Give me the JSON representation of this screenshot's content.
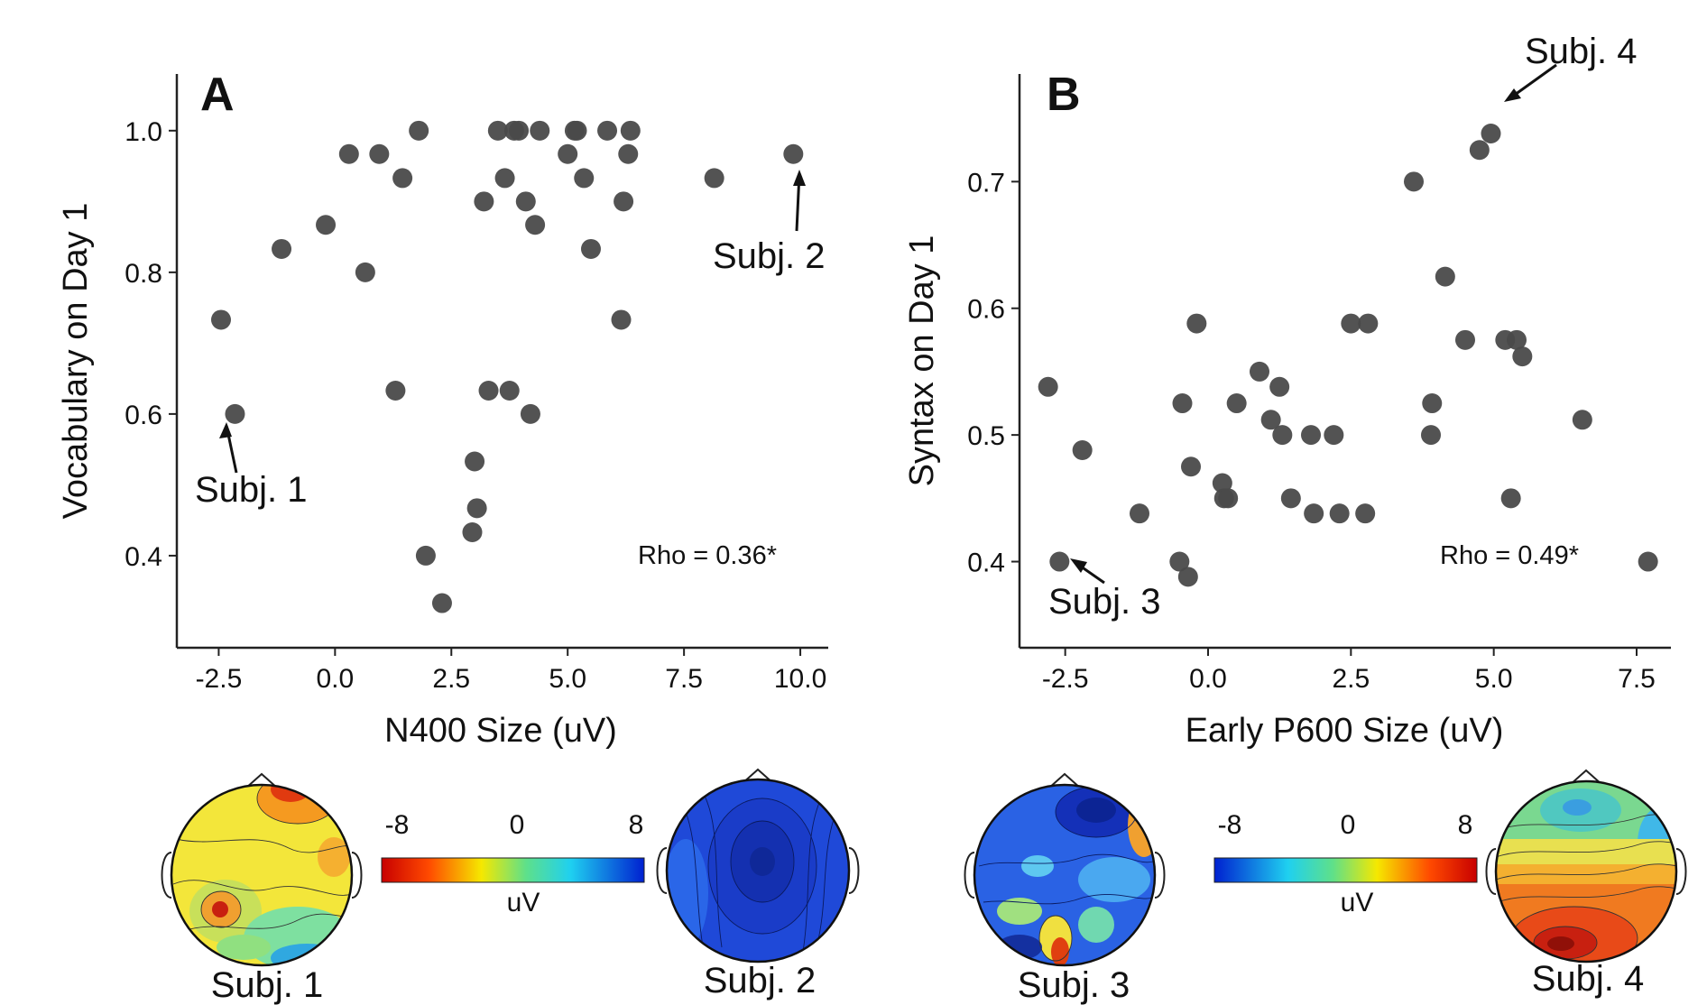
{
  "chart_data": [
    {
      "type": "scatter",
      "panel": "A",
      "xlabel": "N400 Size (uV)",
      "ylabel": "Vocabulary on Day 1",
      "xlim": [
        -3.4,
        10.6
      ],
      "ylim": [
        0.27,
        1.08
      ],
      "xticks": [
        "-2.5",
        "0.0",
        "2.5",
        "5.0",
        "7.5",
        "10.0"
      ],
      "xtick_values": [
        -2.5,
        0,
        2.5,
        5,
        7.5,
        10
      ],
      "yticks": [
        "0.4",
        "0.6",
        "0.8",
        "1.0"
      ],
      "ytick_values": [
        0.4,
        0.6,
        0.8,
        1.0
      ],
      "annotation": "Rho = 0.36*",
      "color": "#4a4a4a",
      "points": [
        [
          -2.45,
          0.733
        ],
        [
          -2.15,
          0.6
        ],
        [
          -1.15,
          0.833
        ],
        [
          -0.2,
          0.867
        ],
        [
          0.3,
          0.967
        ],
        [
          0.65,
          0.8
        ],
        [
          0.95,
          0.967
        ],
        [
          1.3,
          0.633
        ],
        [
          1.45,
          0.933
        ],
        [
          1.8,
          1.0
        ],
        [
          1.95,
          0.4
        ],
        [
          2.3,
          0.333
        ],
        [
          2.95,
          0.433
        ],
        [
          3.0,
          0.533
        ],
        [
          3.05,
          0.467
        ],
        [
          3.2,
          0.9
        ],
        [
          3.3,
          0.633
        ],
        [
          3.5,
          1.0
        ],
        [
          3.65,
          0.933
        ],
        [
          3.75,
          0.633
        ],
        [
          3.85,
          1.0
        ],
        [
          3.95,
          1.0
        ],
        [
          4.1,
          0.9
        ],
        [
          4.2,
          0.6
        ],
        [
          4.3,
          0.867
        ],
        [
          4.4,
          1.0
        ],
        [
          5.0,
          0.967
        ],
        [
          5.15,
          1.0
        ],
        [
          5.2,
          1.0
        ],
        [
          5.35,
          0.933
        ],
        [
          5.5,
          0.833
        ],
        [
          5.85,
          1.0
        ],
        [
          6.15,
          0.733
        ],
        [
          6.2,
          0.9
        ],
        [
          6.3,
          0.967
        ],
        [
          6.35,
          1.0
        ],
        [
          8.15,
          0.933
        ],
        [
          9.85,
          0.967
        ]
      ],
      "callouts": [
        {
          "label": "Subj. 1",
          "point": [
            -2.15,
            0.6
          ]
        },
        {
          "label": "Subj. 2",
          "point": [
            9.85,
            0.967
          ]
        }
      ]
    },
    {
      "type": "scatter",
      "panel": "B",
      "xlabel": "Early P600 Size (uV)",
      "ylabel": "Syntax on Day 1",
      "xlim": [
        -3.3,
        8.1
      ],
      "ylim": [
        0.332,
        0.785
      ],
      "xticks": [
        "-2.5",
        "0.0",
        "2.5",
        "5.0",
        "7.5"
      ],
      "xtick_values": [
        -2.5,
        0,
        2.5,
        5,
        7.5
      ],
      "yticks": [
        "0.4",
        "0.5",
        "0.6",
        "0.7"
      ],
      "ytick_values": [
        0.4,
        0.5,
        0.6,
        0.7
      ],
      "annotation": "Rho = 0.49*",
      "color": "#4a4a4a",
      "points": [
        [
          -2.8,
          0.538
        ],
        [
          -2.6,
          0.4
        ],
        [
          -2.2,
          0.488
        ],
        [
          -1.2,
          0.438
        ],
        [
          -0.5,
          0.4
        ],
        [
          -0.45,
          0.525
        ],
        [
          -0.35,
          0.388
        ],
        [
          -0.3,
          0.475
        ],
        [
          -0.2,
          0.588
        ],
        [
          0.25,
          0.462
        ],
        [
          0.28,
          0.45
        ],
        [
          0.35,
          0.45
        ],
        [
          0.5,
          0.525
        ],
        [
          0.9,
          0.55
        ],
        [
          1.1,
          0.512
        ],
        [
          1.25,
          0.538
        ],
        [
          1.3,
          0.5
        ],
        [
          1.45,
          0.45
        ],
        [
          1.8,
          0.5
        ],
        [
          1.85,
          0.438
        ],
        [
          2.2,
          0.5
        ],
        [
          2.3,
          0.438
        ],
        [
          2.5,
          0.588
        ],
        [
          2.75,
          0.438
        ],
        [
          2.8,
          0.588
        ],
        [
          3.6,
          0.7
        ],
        [
          3.9,
          0.5
        ],
        [
          3.92,
          0.525
        ],
        [
          4.15,
          0.625
        ],
        [
          4.5,
          0.575
        ],
        [
          4.75,
          0.725
        ],
        [
          4.95,
          0.738
        ],
        [
          5.2,
          0.575
        ],
        [
          5.3,
          0.45
        ],
        [
          5.4,
          0.575
        ],
        [
          5.5,
          0.562
        ],
        [
          6.55,
          0.512
        ],
        [
          7.7,
          0.4
        ]
      ],
      "callouts": [
        {
          "label": "Subj. 3",
          "point": [
            -2.6,
            0.4
          ]
        },
        {
          "label": "Subj. 4",
          "point": [
            4.95,
            0.738
          ]
        }
      ]
    }
  ],
  "colorbars": [
    {
      "ticks": [
        "-8",
        "0",
        "8"
      ],
      "unit": "uV",
      "colors": [
        "#d40000",
        "#f0e000",
        "#30d8e8",
        "#1030e0"
      ]
    },
    {
      "ticks": [
        "-8",
        "0",
        "8"
      ],
      "unit": "uV",
      "colors": [
        "#1030e0",
        "#30d8e8",
        "#f0e000",
        "#d40000"
      ]
    }
  ],
  "topomaps": [
    {
      "label": "Subj. 1",
      "base": "#f3e63a"
    },
    {
      "label": "Subj. 2",
      "base": "#1b3fcf"
    },
    {
      "label": "Subj. 3",
      "base": "#2a5fe0"
    },
    {
      "label": "Subj. 4",
      "base": "#f08a20"
    }
  ]
}
